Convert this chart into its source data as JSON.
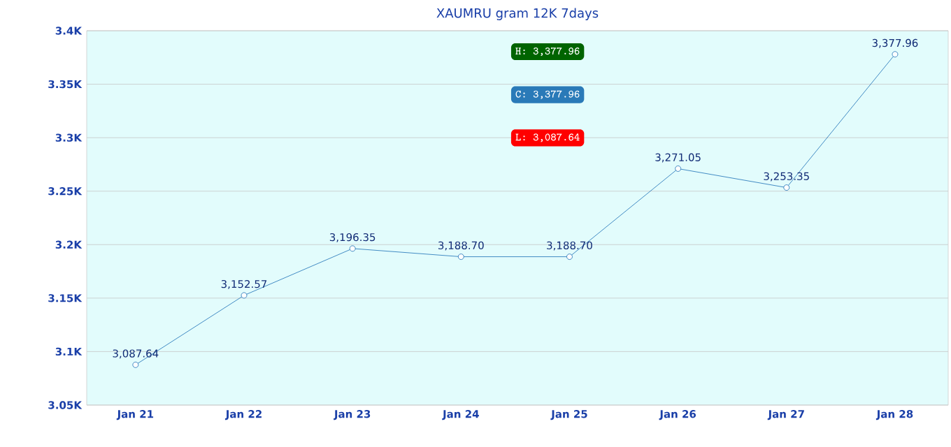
{
  "chart_data": {
    "type": "line",
    "title": "XAUMRU gram 12K 7days",
    "categories": [
      "Jan 21",
      "Jan 22",
      "Jan 23",
      "Jan 24",
      "Jan 25",
      "Jan 26",
      "Jan 27",
      "Jan 28"
    ],
    "series": [
      {
        "color": "#1a6fb5",
        "values": [
          3087.64,
          3152.57,
          3196.35,
          3188.7,
          3188.7,
          3271.05,
          3253.35,
          3377.96
        ],
        "value_labels": [
          "3,087.64",
          "3,152.57",
          "3,196.35",
          "3,188.70",
          "3,188.70",
          "3,271.05",
          "3,253.35",
          "3,377.96"
        ]
      }
    ],
    "ylim": [
      3050,
      3400
    ],
    "yticks": [
      {
        "value": 3050,
        "label": "3.05K"
      },
      {
        "value": 3100,
        "label": "3.1K"
      },
      {
        "value": 3150,
        "label": "3.15K"
      },
      {
        "value": 3200,
        "label": "3.2K"
      },
      {
        "value": 3250,
        "label": "3.25K"
      },
      {
        "value": 3300,
        "label": "3.3K"
      },
      {
        "value": 3350,
        "label": "3.35K"
      },
      {
        "value": 3400,
        "label": "3.4K"
      }
    ],
    "grid": "y",
    "marker": "circle",
    "line_style": "solid",
    "annotations": [
      "H: 3,377.96",
      "C: 3,377.96",
      "L: 3,087.64"
    ]
  }
}
